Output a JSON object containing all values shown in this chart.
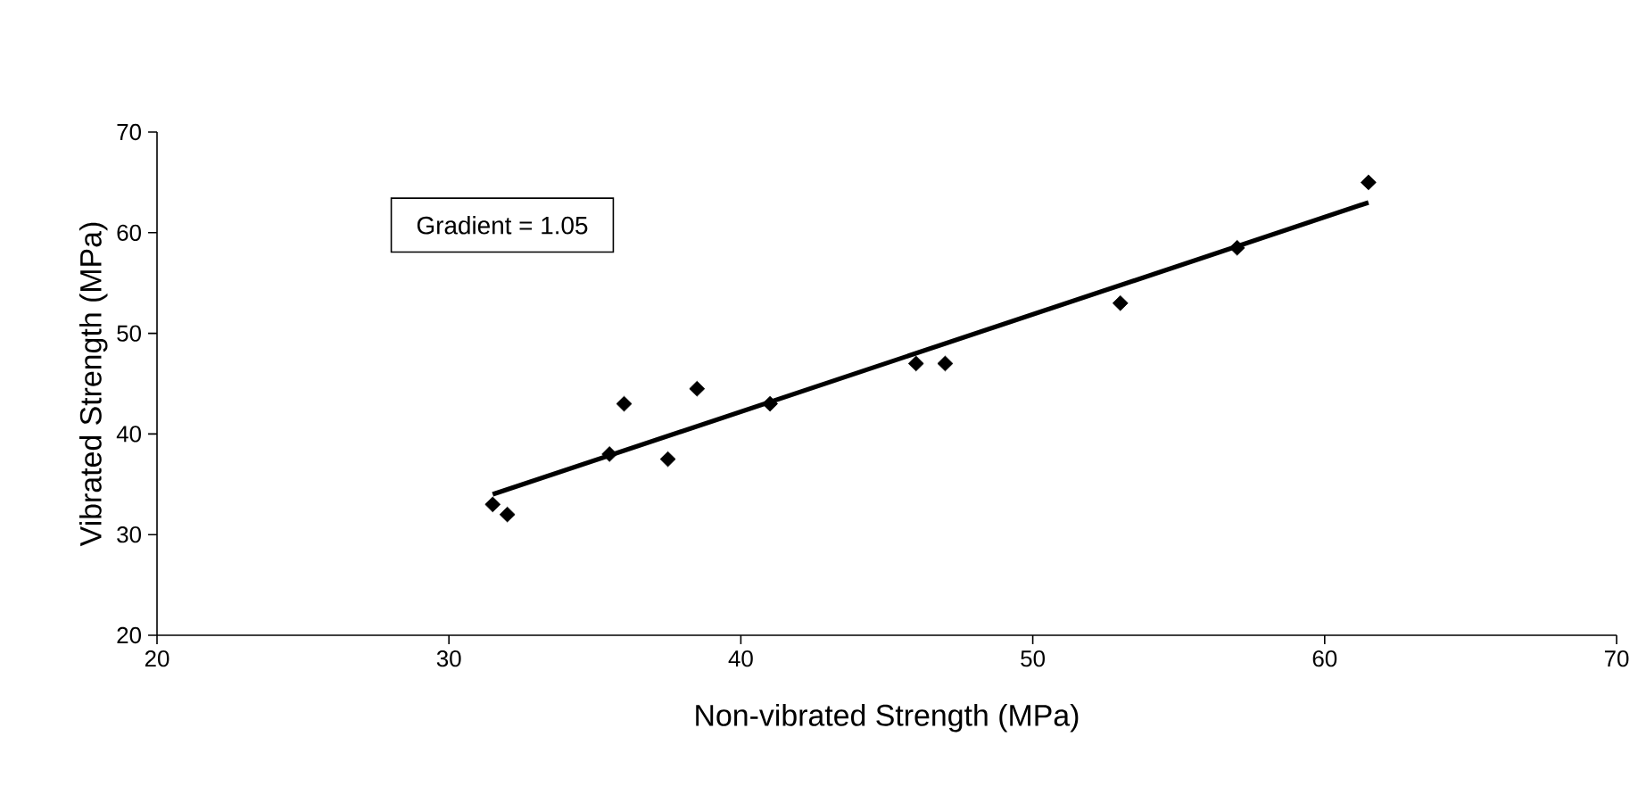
{
  "chart_data": {
    "type": "scatter",
    "xlabel": "Non-vibrated Strength (MPa)",
    "ylabel": "Vibrated Strength (MPa)",
    "xlim": [
      20,
      70
    ],
    "ylim": [
      20,
      70
    ],
    "xticks": [
      20,
      30,
      40,
      50,
      60,
      70
    ],
    "yticks": [
      20,
      30,
      40,
      50,
      60,
      70
    ],
    "marker": "diamond",
    "grid": false,
    "annotations": [
      "Gradient = 1.05"
    ],
    "series": [
      {
        "color": "#000000",
        "x": [
          31.5,
          32,
          35.5,
          36,
          37.5,
          38.5,
          41,
          46,
          47,
          53,
          57,
          61.5
        ],
        "values": [
          33,
          32,
          38,
          43,
          37.5,
          44.5,
          43,
          47,
          47,
          53,
          58.5,
          65
        ]
      },
      {
        "type": "line",
        "marker": "none",
        "color": "#000000",
        "x": [
          31.5,
          61.5
        ],
        "values": [
          34,
          63
        ]
      }
    ]
  }
}
